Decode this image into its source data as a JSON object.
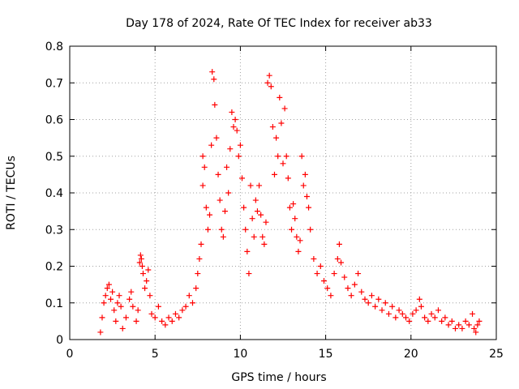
{
  "chart_data": {
    "type": "scatter",
    "title": "Day 178 of 2024, Rate Of TEC Index for receiver ab33",
    "xlabel": "GPS time / hours",
    "ylabel": "ROTI / TECUs",
    "xlim": [
      0,
      25
    ],
    "ylim": [
      0,
      0.8
    ],
    "xticks": [
      0,
      5,
      10,
      15,
      20,
      25
    ],
    "xtick_labels": [
      "0",
      "5",
      "10",
      "15",
      "20",
      "25"
    ],
    "yticks": [
      0,
      0.1,
      0.2,
      0.3,
      0.4,
      0.5,
      0.6,
      0.7,
      0.8
    ],
    "ytick_labels": [
      "0",
      "0.1",
      "0.2",
      "0.3",
      "0.4",
      "0.5",
      "0.6",
      "0.7",
      "0.8"
    ],
    "grid": true,
    "marker": "+",
    "marker_color": "#ff0000",
    "series": [
      {
        "name": "ROTI",
        "points": [
          [
            1.8,
            0.02
          ],
          [
            1.9,
            0.06
          ],
          [
            2.0,
            0.1
          ],
          [
            2.1,
            0.12
          ],
          [
            2.2,
            0.14
          ],
          [
            2.3,
            0.15
          ],
          [
            2.4,
            0.11
          ],
          [
            2.5,
            0.13
          ],
          [
            2.6,
            0.08
          ],
          [
            2.7,
            0.05
          ],
          [
            2.8,
            0.1
          ],
          [
            2.9,
            0.12
          ],
          [
            3.0,
            0.09
          ],
          [
            3.1,
            0.03
          ],
          [
            3.3,
            0.06
          ],
          [
            3.5,
            0.11
          ],
          [
            3.6,
            0.13
          ],
          [
            3.7,
            0.09
          ],
          [
            3.9,
            0.05
          ],
          [
            4.0,
            0.08
          ],
          [
            4.1,
            0.21
          ],
          [
            4.15,
            0.23
          ],
          [
            4.2,
            0.22
          ],
          [
            4.25,
            0.2
          ],
          [
            4.3,
            0.18
          ],
          [
            4.4,
            0.14
          ],
          [
            4.5,
            0.16
          ],
          [
            4.6,
            0.19
          ],
          [
            4.7,
            0.12
          ],
          [
            4.8,
            0.07
          ],
          [
            5.0,
            0.06
          ],
          [
            5.2,
            0.09
          ],
          [
            5.4,
            0.05
          ],
          [
            5.6,
            0.04
          ],
          [
            5.8,
            0.06
          ],
          [
            6.0,
            0.05
          ],
          [
            6.2,
            0.07
          ],
          [
            6.4,
            0.06
          ],
          [
            6.6,
            0.08
          ],
          [
            6.8,
            0.09
          ],
          [
            7.0,
            0.12
          ],
          [
            7.2,
            0.1
          ],
          [
            7.4,
            0.14
          ],
          [
            7.5,
            0.18
          ],
          [
            7.6,
            0.22
          ],
          [
            7.7,
            0.26
          ],
          [
            7.8,
            0.42
          ],
          [
            7.8,
            0.5
          ],
          [
            7.9,
            0.47
          ],
          [
            8.0,
            0.36
          ],
          [
            8.1,
            0.3
          ],
          [
            8.2,
            0.34
          ],
          [
            8.3,
            0.53
          ],
          [
            8.35,
            0.73
          ],
          [
            8.45,
            0.71
          ],
          [
            8.5,
            0.64
          ],
          [
            8.6,
            0.55
          ],
          [
            8.7,
            0.45
          ],
          [
            8.8,
            0.38
          ],
          [
            8.9,
            0.3
          ],
          [
            9.0,
            0.28
          ],
          [
            9.1,
            0.35
          ],
          [
            9.2,
            0.47
          ],
          [
            9.3,
            0.4
          ],
          [
            9.4,
            0.52
          ],
          [
            9.5,
            0.62
          ],
          [
            9.6,
            0.58
          ],
          [
            9.7,
            0.6
          ],
          [
            9.8,
            0.57
          ],
          [
            9.9,
            0.5
          ],
          [
            10.0,
            0.53
          ],
          [
            10.1,
            0.44
          ],
          [
            10.2,
            0.36
          ],
          [
            10.3,
            0.3
          ],
          [
            10.4,
            0.24
          ],
          [
            10.5,
            0.18
          ],
          [
            10.6,
            0.42
          ],
          [
            10.7,
            0.33
          ],
          [
            10.8,
            0.28
          ],
          [
            10.9,
            0.38
          ],
          [
            11.0,
            0.35
          ],
          [
            11.1,
            0.42
          ],
          [
            11.2,
            0.34
          ],
          [
            11.3,
            0.28
          ],
          [
            11.4,
            0.26
          ],
          [
            11.5,
            0.32
          ],
          [
            11.6,
            0.7
          ],
          [
            11.7,
            0.72
          ],
          [
            11.8,
            0.69
          ],
          [
            11.9,
            0.58
          ],
          [
            12.0,
            0.45
          ],
          [
            12.1,
            0.55
          ],
          [
            12.2,
            0.5
          ],
          [
            12.3,
            0.66
          ],
          [
            12.4,
            0.59
          ],
          [
            12.5,
            0.48
          ],
          [
            12.6,
            0.63
          ],
          [
            12.7,
            0.5
          ],
          [
            12.8,
            0.44
          ],
          [
            12.9,
            0.36
          ],
          [
            13.0,
            0.3
          ],
          [
            13.1,
            0.37
          ],
          [
            13.2,
            0.33
          ],
          [
            13.3,
            0.28
          ],
          [
            13.4,
            0.24
          ],
          [
            13.5,
            0.27
          ],
          [
            13.6,
            0.5
          ],
          [
            13.7,
            0.42
          ],
          [
            13.8,
            0.45
          ],
          [
            13.9,
            0.39
          ],
          [
            14.0,
            0.36
          ],
          [
            14.1,
            0.3
          ],
          [
            14.3,
            0.22
          ],
          [
            14.5,
            0.18
          ],
          [
            14.7,
            0.2
          ],
          [
            14.9,
            0.16
          ],
          [
            15.1,
            0.14
          ],
          [
            15.3,
            0.12
          ],
          [
            15.5,
            0.18
          ],
          [
            15.7,
            0.22
          ],
          [
            15.8,
            0.26
          ],
          [
            15.9,
            0.21
          ],
          [
            16.1,
            0.17
          ],
          [
            16.3,
            0.14
          ],
          [
            16.5,
            0.12
          ],
          [
            16.7,
            0.15
          ],
          [
            16.9,
            0.18
          ],
          [
            17.1,
            0.13
          ],
          [
            17.3,
            0.11
          ],
          [
            17.5,
            0.1
          ],
          [
            17.7,
            0.12
          ],
          [
            17.9,
            0.09
          ],
          [
            18.1,
            0.11
          ],
          [
            18.3,
            0.08
          ],
          [
            18.5,
            0.1
          ],
          [
            18.7,
            0.07
          ],
          [
            18.9,
            0.09
          ],
          [
            19.1,
            0.06
          ],
          [
            19.3,
            0.08
          ],
          [
            19.5,
            0.07
          ],
          [
            19.7,
            0.06
          ],
          [
            19.9,
            0.05
          ],
          [
            20.1,
            0.07
          ],
          [
            20.3,
            0.08
          ],
          [
            20.5,
            0.11
          ],
          [
            20.6,
            0.09
          ],
          [
            20.8,
            0.06
          ],
          [
            21.0,
            0.05
          ],
          [
            21.2,
            0.07
          ],
          [
            21.4,
            0.06
          ],
          [
            21.6,
            0.08
          ],
          [
            21.8,
            0.05
          ],
          [
            22.0,
            0.06
          ],
          [
            22.2,
            0.04
          ],
          [
            22.4,
            0.05
          ],
          [
            22.6,
            0.03
          ],
          [
            22.8,
            0.04
          ],
          [
            23.0,
            0.03
          ],
          [
            23.2,
            0.05
          ],
          [
            23.4,
            0.04
          ],
          [
            23.6,
            0.07
          ],
          [
            23.7,
            0.03
          ],
          [
            23.8,
            0.02
          ],
          [
            23.9,
            0.04
          ],
          [
            24.0,
            0.05
          ]
        ]
      }
    ]
  }
}
